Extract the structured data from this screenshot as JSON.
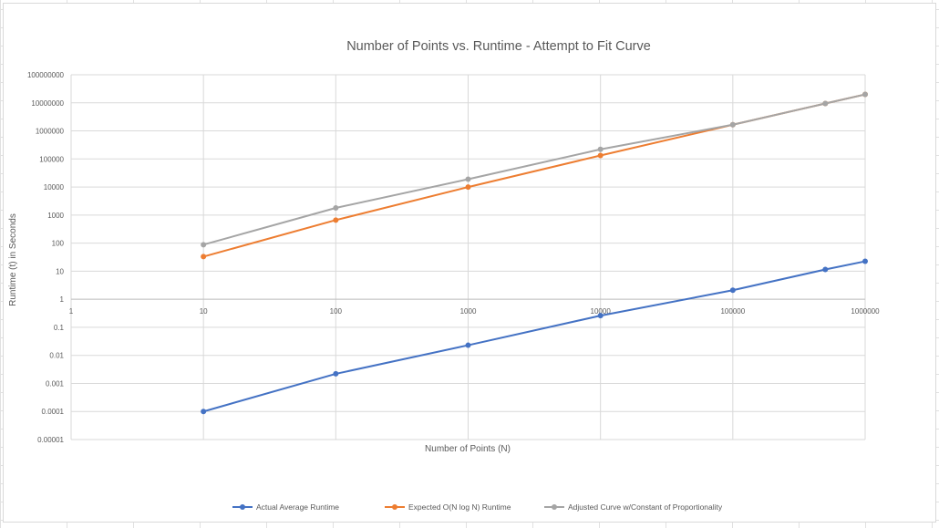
{
  "chart_data": {
    "type": "line",
    "title": "Number of Points vs. Runtime - Attempt to Fit Curve",
    "xlabel": "Number of Points (N)",
    "ylabel": "Runtime (t) in Seconds",
    "x_scale": "log",
    "y_scale": "log",
    "xlim": [
      1,
      1000000
    ],
    "ylim": [
      1e-05,
      100000000
    ],
    "x_ticks": [
      1,
      10,
      100,
      1000,
      10000,
      100000,
      1000000
    ],
    "x_tick_labels": [
      "1",
      "10",
      "100",
      "1000",
      "10000",
      "100000",
      "1000000"
    ],
    "y_ticks": [
      1e-05,
      0.0001,
      0.001,
      0.01,
      0.1,
      1,
      10,
      100,
      1000,
      10000,
      100000,
      1000000,
      10000000,
      100000000
    ],
    "y_tick_labels": [
      "0.00001",
      "0.0001",
      "0.001",
      "0.01",
      "0.1",
      "1",
      "10",
      "100",
      "1000",
      "10000",
      "100000",
      "1000000",
      "10000000",
      "100000000"
    ],
    "grid": true,
    "legend_position": "bottom",
    "series": [
      {
        "name": "Actual Average Runtime",
        "color": "#4472c4",
        "x": [
          10,
          100,
          1000,
          10000,
          100000,
          500000,
          1000000
        ],
        "y": [
          0.0001,
          0.0022,
          0.023,
          0.26,
          2.1,
          11.5,
          22.5
        ]
      },
      {
        "name": "Expected O(N log N) Runtime",
        "color": "#ed7d31",
        "x": [
          10,
          100,
          1000,
          10000,
          100000,
          500000,
          1000000
        ],
        "y": [
          33,
          664,
          9966,
          132877,
          1660964,
          9465784,
          19931569
        ]
      },
      {
        "name": "Adjusted Curve w/Constant of Proportionality",
        "color": "#a5a5a5",
        "x": [
          10,
          100,
          1000,
          10000,
          100000,
          500000,
          1000000
        ],
        "y": [
          88,
          1800,
          19000,
          220000,
          1660000,
          9465000,
          19930000
        ]
      }
    ]
  }
}
